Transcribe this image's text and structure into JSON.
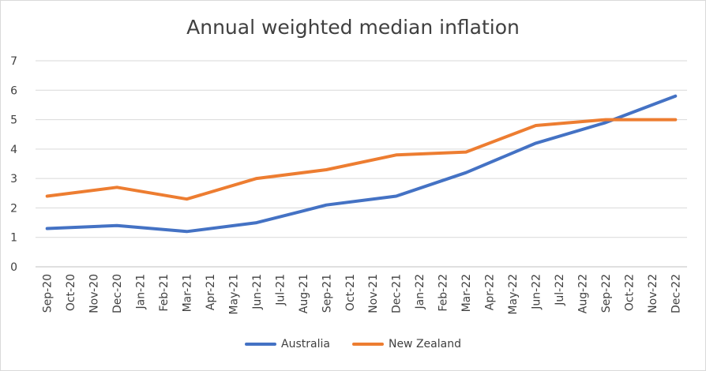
{
  "chart_data": {
    "type": "line",
    "title": "Annual weighted median inflation",
    "xlabel": "",
    "ylabel": "",
    "ylim": [
      0,
      7
    ],
    "yticks": [
      0,
      1,
      2,
      3,
      4,
      5,
      6,
      7
    ],
    "grid": true,
    "legend_position": "bottom",
    "categories": [
      "Sep-20",
      "Oct-20",
      "Nov-20",
      "Dec-20",
      "Jan-21",
      "Feb-21",
      "Mar-21",
      "Apr-21",
      "May-21",
      "Jun-21",
      "Jul-21",
      "Aug-21",
      "Sep-21",
      "Oct-21",
      "Nov-21",
      "Dec-21",
      "Jan-22",
      "Feb-22",
      "Mar-22",
      "Apr-22",
      "May-22",
      "Jun-22",
      "Jul-22",
      "Aug-22",
      "Sep-22",
      "Oct-22",
      "Nov-22",
      "Dec-22"
    ],
    "series": [
      {
        "name": "Australia",
        "color": "#4472c4",
        "points": [
          {
            "x": "Sep-20",
            "y": 1.3
          },
          {
            "x": "Dec-20",
            "y": 1.4
          },
          {
            "x": "Mar-21",
            "y": 1.2
          },
          {
            "x": "Jun-21",
            "y": 1.5
          },
          {
            "x": "Sep-21",
            "y": 2.1
          },
          {
            "x": "Dec-21",
            "y": 2.4
          },
          {
            "x": "Mar-22",
            "y": 3.2
          },
          {
            "x": "Jun-22",
            "y": 4.2
          },
          {
            "x": "Sep-22",
            "y": 4.9
          },
          {
            "x": "Dec-22",
            "y": 5.8
          }
        ]
      },
      {
        "name": "New Zealand",
        "color": "#ed7d31",
        "points": [
          {
            "x": "Sep-20",
            "y": 2.4
          },
          {
            "x": "Dec-20",
            "y": 2.7
          },
          {
            "x": "Mar-21",
            "y": 2.3
          },
          {
            "x": "Jun-21",
            "y": 3.0
          },
          {
            "x": "Sep-21",
            "y": 3.3
          },
          {
            "x": "Dec-21",
            "y": 3.8
          },
          {
            "x": "Mar-22",
            "y": 3.9
          },
          {
            "x": "Jun-22",
            "y": 4.8
          },
          {
            "x": "Sep-22",
            "y": 5.0
          },
          {
            "x": "Dec-22",
            "y": 5.0
          }
        ]
      }
    ]
  }
}
